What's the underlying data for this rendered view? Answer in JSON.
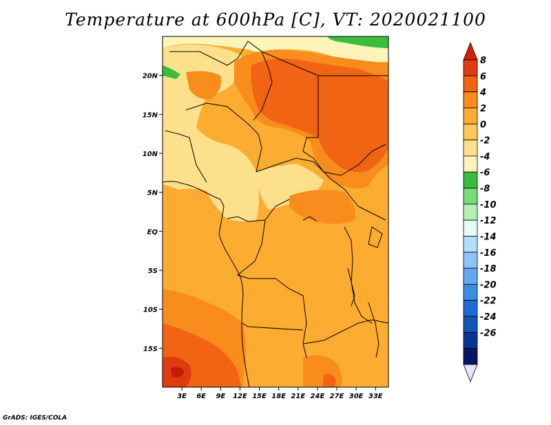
{
  "title": "Temperature at 600hPa [C], VT: 2020021100",
  "credit": "GrADS: IGES/COLA",
  "map": {
    "lon_range": [
      0,
      35
    ],
    "lat_range": [
      -20,
      25
    ],
    "x_ticks": [
      {
        "lon": 3,
        "label": "3E"
      },
      {
        "lon": 6,
        "label": "6E"
      },
      {
        "lon": 9,
        "label": "9E"
      },
      {
        "lon": 12,
        "label": "12E"
      },
      {
        "lon": 15,
        "label": "15E"
      },
      {
        "lon": 18,
        "label": "18E"
      },
      {
        "lon": 21,
        "label": "21E"
      },
      {
        "lon": 24,
        "label": "24E"
      },
      {
        "lon": 27,
        "label": "27E"
      },
      {
        "lon": 30,
        "label": "30E"
      },
      {
        "lon": 33,
        "label": "33E"
      }
    ],
    "y_ticks": [
      {
        "lat": 20,
        "label": "20N"
      },
      {
        "lat": 15,
        "label": "15N"
      },
      {
        "lat": 10,
        "label": "10N"
      },
      {
        "lat": 5,
        "label": "5N"
      },
      {
        "lat": 0,
        "label": "EQ"
      },
      {
        "lat": -5,
        "label": "5S"
      },
      {
        "lat": -10,
        "label": "10S"
      },
      {
        "lat": -15,
        "label": "15S"
      }
    ]
  },
  "colorbar": {
    "labels": [
      "8",
      "6",
      "4",
      "2",
      "0",
      "-2",
      "-4",
      "-6",
      "-8",
      "-10",
      "-12",
      "-14",
      "-16",
      "-18",
      "-20",
      "-22",
      "-24",
      "-26"
    ],
    "colors": [
      "#e03a10",
      "#f06414",
      "#f88c1c",
      "#fcac30",
      "#fcc858",
      "#fce08c",
      "#fcf4b8",
      "#3cbc3c",
      "#78dc78",
      "#b4f0b4",
      "#e4fcf4",
      "#b4dcfc",
      "#8cc4f8",
      "#64a8f0",
      "#3c8ce4",
      "#1c6cd4",
      "#1454b4",
      "#0c3494",
      "#081464"
    ],
    "over_color": "#d42008",
    "under_color": "#e4e4fc"
  }
}
